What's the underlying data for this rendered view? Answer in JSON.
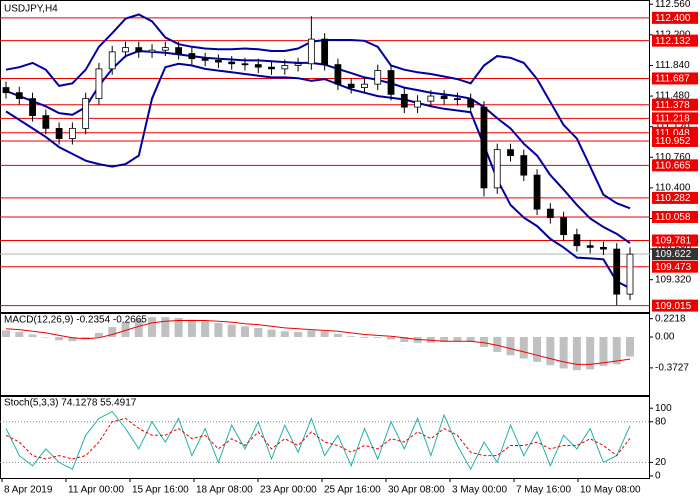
{
  "chart_data": [
    {
      "type": "candlestick",
      "title": "USDJPY,H4",
      "open": [
        111.58,
        111.52,
        111.45,
        111.25,
        111.1,
        110.98,
        111.1,
        111.45,
        111.8,
        112.0,
        112.05,
        112.0,
        112.02,
        112.05,
        111.98,
        111.92,
        111.9,
        111.88,
        111.86,
        111.85,
        111.82,
        111.8,
        111.84,
        111.86,
        112.15,
        111.85,
        111.62,
        111.58,
        111.62,
        111.78,
        111.5,
        111.35,
        111.42,
        111.48,
        111.45,
        111.44,
        111.35,
        110.4,
        110.85,
        110.78,
        110.55,
        110.15,
        110.05,
        109.85,
        109.72,
        109.7,
        109.68,
        109.15
      ],
      "high": [
        111.65,
        111.59,
        111.52,
        111.32,
        111.17,
        111.17,
        111.52,
        111.87,
        112.07,
        112.12,
        112.12,
        112.09,
        112.12,
        112.12,
        112.05,
        111.99,
        111.97,
        111.95,
        111.93,
        111.92,
        111.89,
        111.91,
        111.93,
        112.42,
        112.22,
        111.92,
        111.69,
        111.69,
        111.85,
        111.85,
        111.57,
        111.49,
        111.55,
        111.55,
        111.52,
        111.51,
        111.42,
        110.92,
        110.92,
        110.85,
        110.62,
        110.22,
        110.12,
        109.92,
        109.79,
        109.77,
        109.75,
        109.7
      ],
      "low": [
        111.45,
        111.38,
        111.18,
        111.03,
        110.91,
        110.91,
        111.03,
        111.38,
        111.73,
        111.93,
        111.93,
        111.93,
        111.95,
        111.91,
        111.85,
        111.83,
        111.81,
        111.79,
        111.78,
        111.75,
        111.73,
        111.73,
        111.77,
        111.79,
        111.78,
        111.55,
        111.51,
        111.51,
        111.55,
        111.43,
        111.28,
        111.28,
        111.35,
        111.38,
        111.37,
        111.28,
        110.3,
        110.33,
        110.71,
        110.48,
        110.08,
        109.98,
        109.78,
        109.65,
        109.63,
        109.61,
        109.02,
        109.08
      ],
      "close": [
        111.52,
        111.45,
        111.25,
        111.1,
        110.98,
        111.1,
        111.45,
        111.8,
        112.0,
        112.05,
        112.0,
        112.02,
        112.05,
        111.98,
        111.92,
        111.9,
        111.88,
        111.86,
        111.85,
        111.82,
        111.8,
        111.84,
        111.86,
        112.15,
        111.85,
        111.62,
        111.58,
        111.62,
        111.78,
        111.5,
        111.35,
        111.42,
        111.48,
        111.45,
        111.44,
        111.35,
        110.4,
        110.85,
        110.78,
        110.55,
        110.15,
        110.05,
        109.85,
        109.72,
        109.7,
        109.68,
        109.15,
        109.62
      ],
      "series": [
        {
          "color": "#0000a0",
          "values": [
            111.79,
            111.82,
            111.87,
            111.79,
            111.6,
            111.63,
            111.79,
            112.06,
            112.22,
            112.39,
            112.44,
            112.36,
            112.17,
            112.09,
            112.06,
            112.04,
            112.03,
            112.03,
            112.04,
            112.03,
            112.01,
            112.01,
            112.04,
            112.12,
            112.14,
            112.14,
            112.14,
            112.13,
            112.06,
            111.84,
            111.79,
            111.76,
            111.74,
            111.71,
            111.68,
            111.63,
            111.84,
            111.95,
            111.93,
            111.87,
            111.68,
            111.41,
            111.14,
            110.98,
            110.65,
            110.32,
            110.22,
            110.16
          ]
        },
        {
          "color": "#0000a0",
          "values": [
            111.54,
            111.48,
            111.42,
            111.36,
            111.28,
            111.26,
            111.35,
            111.6,
            111.8,
            111.95,
            112.01,
            112.0,
            111.99,
            111.97,
            111.95,
            111.93,
            111.92,
            111.91,
            111.9,
            111.9,
            111.89,
            111.88,
            111.87,
            111.87,
            111.85,
            111.8,
            111.75,
            111.7,
            111.67,
            111.63,
            111.58,
            111.55,
            111.52,
            111.5,
            111.48,
            111.45,
            111.35,
            111.22,
            111.1,
            110.92,
            110.78,
            110.55,
            110.38,
            110.2,
            110.04,
            109.94,
            109.86,
            109.75
          ]
        },
        {
          "color": "#0000a0",
          "values": [
            111.3,
            111.2,
            111.1,
            111.0,
            110.88,
            110.8,
            110.72,
            110.68,
            110.65,
            110.68,
            110.78,
            111.45,
            111.82,
            111.86,
            111.84,
            111.8,
            111.78,
            111.76,
            111.74,
            111.72,
            111.7,
            111.7,
            111.69,
            111.66,
            111.68,
            111.62,
            111.56,
            111.52,
            111.48,
            111.46,
            111.44,
            111.4,
            111.36,
            111.33,
            111.31,
            111.29,
            110.9,
            110.5,
            110.2,
            110.05,
            109.95,
            109.8,
            109.7,
            109.58,
            109.57,
            109.56,
            109.3,
            109.22
          ]
        }
      ],
      "levels": [
        {
          "value": 112.4,
          "label": "112.400"
        },
        {
          "value": 112.132,
          "label": "112.132"
        },
        {
          "value": 111.687,
          "label": "111.687"
        },
        {
          "value": 111.378,
          "label": "111.378"
        },
        {
          "value": 111.218,
          "label": "111.218"
        },
        {
          "value": 111.048,
          "label": "111.048"
        },
        {
          "value": 110.952,
          "label": "110.952"
        },
        {
          "value": 110.665,
          "label": "110.665"
        },
        {
          "value": 110.282,
          "label": "110.282"
        },
        {
          "value": 110.058,
          "label": "110.058"
        },
        {
          "value": 109.781,
          "label": "109.781"
        },
        {
          "value": 109.473,
          "label": "109.473"
        },
        {
          "value": 109.015,
          "label": "109.015"
        }
      ],
      "level_color": "#ee0000",
      "last_price": {
        "value": 109.622,
        "label": "109.622"
      },
      "ylim": [
        108.94,
        112.61
      ],
      "yticks": [
        {
          "value": 112.56,
          "label": "112.560"
        },
        {
          "value": 112.2,
          "label": "112.200"
        },
        {
          "value": 111.84,
          "label": "111.840"
        },
        {
          "value": 111.48,
          "label": "111.480"
        },
        {
          "value": 111.12,
          "label": "111.120"
        },
        {
          "value": 110.76,
          "label": "110.760"
        },
        {
          "value": 110.4,
          "label": "110.400"
        },
        {
          "value": 110.04,
          "label": "110.040"
        },
        {
          "value": 109.68,
          "label": "109.680"
        },
        {
          "value": 109.32,
          "label": "109.320"
        }
      ]
    },
    {
      "type": "macd",
      "title": "MACD(12,26,9) -0.2354 -0.2665",
      "series": [
        {
          "style": "bar",
          "color": "#c0c0c0",
          "values": [
            0.08,
            0.06,
            0.03,
            0.0,
            -0.04,
            -0.05,
            -0.02,
            0.05,
            0.12,
            0.18,
            0.22,
            0.24,
            0.24,
            0.23,
            0.21,
            0.19,
            0.17,
            0.15,
            0.13,
            0.11,
            0.09,
            0.07,
            0.06,
            0.08,
            0.07,
            0.04,
            0.01,
            -0.01,
            -0.01,
            -0.03,
            -0.06,
            -0.07,
            -0.07,
            -0.06,
            -0.05,
            -0.06,
            -0.12,
            -0.18,
            -0.22,
            -0.26,
            -0.3,
            -0.34,
            -0.38,
            -0.4,
            -0.39,
            -0.35,
            -0.33,
            -0.2354
          ]
        },
        {
          "style": "line",
          "color": "#ee0000",
          "values": [
            0.1,
            0.09,
            0.07,
            0.05,
            0.02,
            -0.01,
            -0.02,
            -0.01,
            0.03,
            0.08,
            0.13,
            0.17,
            0.19,
            0.2,
            0.2,
            0.2,
            0.19,
            0.18,
            0.16,
            0.15,
            0.13,
            0.11,
            0.1,
            0.09,
            0.08,
            0.07,
            0.05,
            0.03,
            0.02,
            0.01,
            -0.01,
            -0.03,
            -0.04,
            -0.05,
            -0.05,
            -0.05,
            -0.07,
            -0.1,
            -0.14,
            -0.18,
            -0.22,
            -0.26,
            -0.3,
            -0.33,
            -0.33,
            -0.31,
            -0.29,
            -0.2665
          ]
        }
      ],
      "ylim": [
        -0.7,
        0.29
      ],
      "yticks": [
        0.2218,
        {
          "value": 0,
          "label": "0.00"
        },
        -0.3727
      ]
    },
    {
      "type": "stochastic",
      "title": "Stoch(5,3,3) 74.1278 55.4917",
      "series": [
        {
          "style": "solid",
          "color": "#20b2aa",
          "values": [
            70,
            30,
            15,
            40,
            20,
            10,
            60,
            85,
            95,
            70,
            40,
            80,
            50,
            85,
            30,
            70,
            20,
            75,
            40,
            80,
            25,
            75,
            35,
            85,
            30,
            60,
            15,
            70,
            25,
            80,
            40,
            85,
            30,
            90,
            45,
            10,
            50,
            20,
            75,
            30,
            65,
            15,
            60,
            40,
            70,
            20,
            30,
            74.1278
          ]
        },
        {
          "style": "dashed",
          "color": "#ee0000",
          "values": [
            60,
            50,
            30,
            25,
            30,
            25,
            30,
            50,
            80,
            85,
            70,
            60,
            60,
            70,
            55,
            60,
            40,
            55,
            45,
            65,
            40,
            55,
            45,
            65,
            50,
            45,
            35,
            45,
            40,
            55,
            50,
            65,
            55,
            70,
            60,
            35,
            30,
            30,
            45,
            45,
            50,
            40,
            45,
            45,
            55,
            45,
            30,
            55.4917
          ]
        }
      ],
      "levels": [
        80,
        20
      ],
      "ylim": [
        -3,
        118
      ],
      "yticks": [
        100,
        80,
        20,
        0
      ],
      "x_labels": [
        "8 Apr 2019",
        "11 Apr 00:00",
        "15 Apr 16:00",
        "18 Apr 08:00",
        "23 Apr 00:00",
        "25 Apr 16:00",
        "30 Apr 08:00",
        "3 May 00:00",
        "7 May 16:00",
        "10 May 08:00"
      ]
    }
  ]
}
